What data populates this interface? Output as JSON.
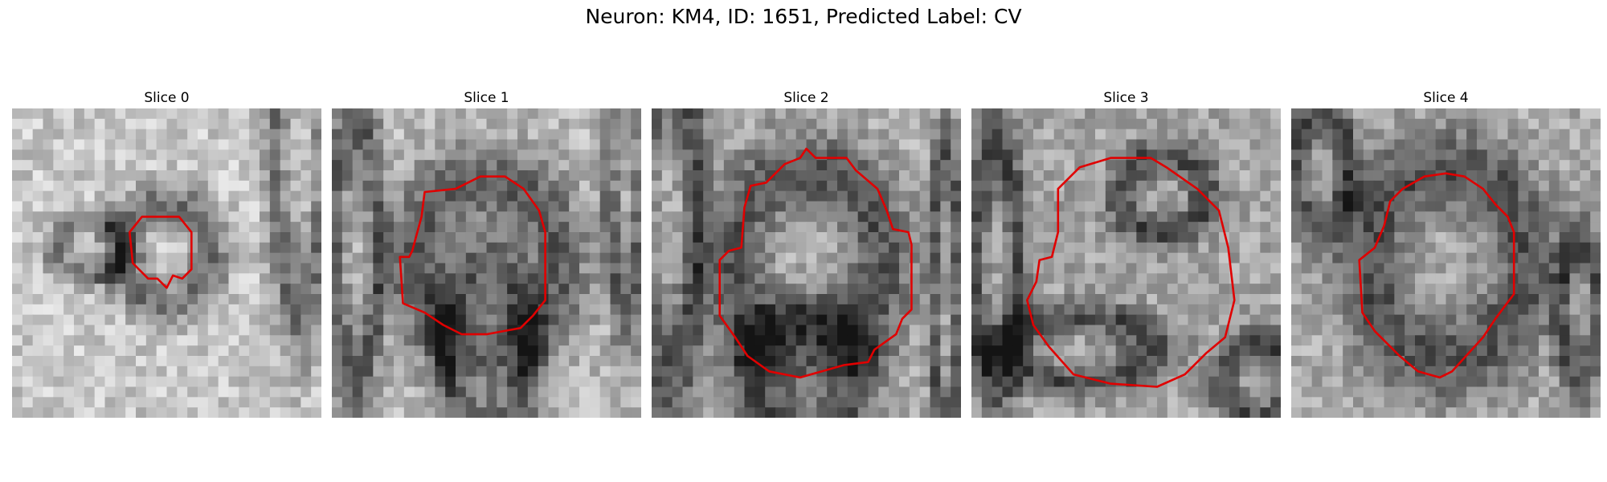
{
  "figure": {
    "title": "Neuron: KM4, ID: 1651, Predicted Label: CV"
  },
  "outline_color": "#e00000",
  "panels": [
    {
      "title": "Slice 0",
      "seed": 11,
      "base_tone": 200,
      "dark_blobs": [
        [
          0.93,
          0.14,
          0.09,
          0.55
        ],
        [
          0.5,
          0.47,
          0.16,
          0.18
        ],
        [
          0.25,
          0.45,
          0.12,
          0.1
        ]
      ],
      "outline": [
        [
          0.42,
          0.35
        ],
        [
          0.54,
          0.35
        ],
        [
          0.58,
          0.4
        ],
        [
          0.58,
          0.52
        ],
        [
          0.55,
          0.55
        ],
        [
          0.52,
          0.54
        ],
        [
          0.5,
          0.58
        ],
        [
          0.47,
          0.55
        ],
        [
          0.44,
          0.55
        ],
        [
          0.39,
          0.5
        ],
        [
          0.38,
          0.4
        ]
      ]
    },
    {
      "title": "Slice 1",
      "seed": 23,
      "base_tone": 185,
      "dark_blobs": [
        [
          0.08,
          0.45,
          0.08,
          0.45
        ],
        [
          0.95,
          0.12,
          0.06,
          0.55
        ],
        [
          0.5,
          0.5,
          0.26,
          0.3
        ],
        [
          0.5,
          0.78,
          0.15,
          0.3
        ]
      ],
      "outline": [
        [
          0.4,
          0.26
        ],
        [
          0.48,
          0.22
        ],
        [
          0.56,
          0.22
        ],
        [
          0.62,
          0.26
        ],
        [
          0.67,
          0.33
        ],
        [
          0.69,
          0.4
        ],
        [
          0.69,
          0.62
        ],
        [
          0.65,
          0.67
        ],
        [
          0.61,
          0.71
        ],
        [
          0.5,
          0.73
        ],
        [
          0.42,
          0.73
        ],
        [
          0.36,
          0.7
        ],
        [
          0.3,
          0.66
        ],
        [
          0.23,
          0.63
        ],
        [
          0.22,
          0.48
        ],
        [
          0.25,
          0.48
        ],
        [
          0.26,
          0.46
        ],
        [
          0.29,
          0.35
        ],
        [
          0.3,
          0.27
        ]
      ]
    },
    {
      "title": "Slice 2",
      "seed": 37,
      "base_tone": 175,
      "dark_blobs": [
        [
          0.06,
          0.35,
          0.1,
          0.55
        ],
        [
          0.5,
          0.5,
          0.27,
          0.33
        ],
        [
          0.95,
          0.6,
          0.05,
          0.5
        ],
        [
          0.5,
          0.85,
          0.2,
          0.2
        ]
      ],
      "outline": [
        [
          0.37,
          0.24
        ],
        [
          0.43,
          0.18
        ],
        [
          0.48,
          0.16
        ],
        [
          0.5,
          0.13
        ],
        [
          0.53,
          0.16
        ],
        [
          0.63,
          0.16
        ],
        [
          0.66,
          0.2
        ],
        [
          0.73,
          0.26
        ],
        [
          0.76,
          0.33
        ],
        [
          0.78,
          0.39
        ],
        [
          0.83,
          0.4
        ],
        [
          0.84,
          0.44
        ],
        [
          0.84,
          0.65
        ],
        [
          0.81,
          0.68
        ],
        [
          0.79,
          0.73
        ],
        [
          0.72,
          0.78
        ],
        [
          0.7,
          0.82
        ],
        [
          0.62,
          0.83
        ],
        [
          0.48,
          0.87
        ],
        [
          0.38,
          0.85
        ],
        [
          0.31,
          0.8
        ],
        [
          0.27,
          0.74
        ],
        [
          0.22,
          0.67
        ],
        [
          0.22,
          0.49
        ],
        [
          0.25,
          0.46
        ],
        [
          0.29,
          0.45
        ],
        [
          0.3,
          0.32
        ],
        [
          0.32,
          0.25
        ]
      ]
    },
    {
      "title": "Slice 3",
      "seed": 53,
      "base_tone": 165,
      "dark_blobs": [
        [
          0.62,
          0.28,
          0.15,
          0.14
        ],
        [
          0.35,
          0.78,
          0.25,
          0.12
        ],
        [
          0.92,
          0.88,
          0.12,
          0.14
        ],
        [
          0.08,
          0.5,
          0.08,
          0.4
        ]
      ],
      "outline": [
        [
          0.28,
          0.26
        ],
        [
          0.35,
          0.19
        ],
        [
          0.45,
          0.16
        ],
        [
          0.58,
          0.16
        ],
        [
          0.63,
          0.19
        ],
        [
          0.73,
          0.26
        ],
        [
          0.8,
          0.33
        ],
        [
          0.83,
          0.45
        ],
        [
          0.85,
          0.62
        ],
        [
          0.82,
          0.74
        ],
        [
          0.76,
          0.79
        ],
        [
          0.69,
          0.86
        ],
        [
          0.6,
          0.9
        ],
        [
          0.45,
          0.89
        ],
        [
          0.33,
          0.86
        ],
        [
          0.25,
          0.77
        ],
        [
          0.2,
          0.7
        ],
        [
          0.18,
          0.62
        ],
        [
          0.21,
          0.56
        ],
        [
          0.22,
          0.49
        ],
        [
          0.26,
          0.48
        ],
        [
          0.28,
          0.4
        ]
      ]
    },
    {
      "title": "Slice 4",
      "seed": 71,
      "base_tone": 170,
      "dark_blobs": [
        [
          0.5,
          0.5,
          0.28,
          0.34
        ],
        [
          0.93,
          0.65,
          0.07,
          0.25
        ],
        [
          0.1,
          0.2,
          0.1,
          0.2
        ]
      ],
      "outline": [
        [
          0.36,
          0.26
        ],
        [
          0.43,
          0.22
        ],
        [
          0.5,
          0.21
        ],
        [
          0.56,
          0.22
        ],
        [
          0.62,
          0.26
        ],
        [
          0.66,
          0.31
        ],
        [
          0.7,
          0.35
        ],
        [
          0.72,
          0.4
        ],
        [
          0.72,
          0.6
        ],
        [
          0.69,
          0.64
        ],
        [
          0.66,
          0.68
        ],
        [
          0.62,
          0.74
        ],
        [
          0.52,
          0.85
        ],
        [
          0.48,
          0.87
        ],
        [
          0.41,
          0.85
        ],
        [
          0.35,
          0.8
        ],
        [
          0.27,
          0.72
        ],
        [
          0.23,
          0.66
        ],
        [
          0.22,
          0.49
        ],
        [
          0.27,
          0.45
        ],
        [
          0.3,
          0.38
        ],
        [
          0.32,
          0.3
        ]
      ]
    }
  ]
}
